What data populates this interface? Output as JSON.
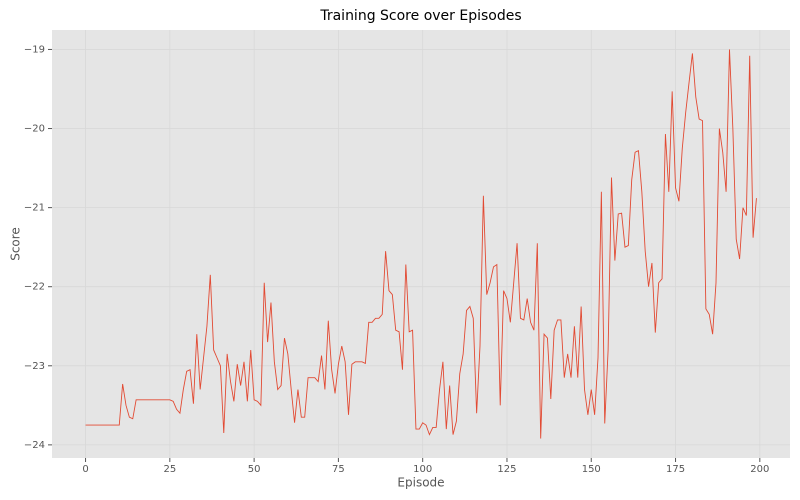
{
  "chart_data": {
    "type": "line",
    "title": "Training Score over Episodes",
    "x_label": "Episode",
    "y_label": "Score",
    "color": "#e24a33",
    "grid": true,
    "xlim": [
      -9.95,
      208.95
    ],
    "ylim": [
      -24.166,
      -18.754
    ],
    "xticks": [
      0,
      25,
      50,
      75,
      100,
      125,
      150,
      175,
      200
    ],
    "yticks": [
      {
        "value": -24,
        "label": "−24"
      },
      {
        "value": -23,
        "label": "−23"
      },
      {
        "value": -22,
        "label": "−22"
      },
      {
        "value": -21,
        "label": "−21"
      },
      {
        "value": -20,
        "label": "−20"
      },
      {
        "value": -19,
        "label": "−19"
      }
    ],
    "x": [
      0,
      1,
      2,
      3,
      4,
      5,
      6,
      7,
      8,
      9,
      10,
      11,
      12,
      13,
      14,
      15,
      16,
      17,
      18,
      19,
      20,
      21,
      22,
      23,
      24,
      25,
      26,
      27,
      28,
      29,
      30,
      31,
      32,
      33,
      34,
      35,
      36,
      37,
      38,
      39,
      40,
      41,
      42,
      43,
      44,
      45,
      46,
      47,
      48,
      49,
      50,
      51,
      52,
      53,
      54,
      55,
      56,
      57,
      58,
      59,
      60,
      61,
      62,
      63,
      64,
      65,
      66,
      67,
      68,
      69,
      70,
      71,
      72,
      73,
      74,
      75,
      76,
      77,
      78,
      79,
      80,
      81,
      82,
      83,
      84,
      85,
      86,
      87,
      88,
      89,
      90,
      91,
      92,
      93,
      94,
      95,
      96,
      97,
      98,
      99,
      100,
      101,
      102,
      103,
      104,
      105,
      106,
      107,
      108,
      109,
      110,
      111,
      112,
      113,
      114,
      115,
      116,
      117,
      118,
      119,
      120,
      121,
      122,
      123,
      124,
      125,
      126,
      127,
      128,
      129,
      130,
      131,
      132,
      133,
      134,
      135,
      136,
      137,
      138,
      139,
      140,
      141,
      142,
      143,
      144,
      145,
      146,
      147,
      148,
      149,
      150,
      151,
      152,
      153,
      154,
      155,
      156,
      157,
      158,
      159,
      160,
      161,
      162,
      163,
      164,
      165,
      166,
      167,
      168,
      169,
      170,
      171,
      172,
      173,
      174,
      175,
      176,
      177,
      178,
      179,
      180,
      181,
      182,
      183,
      184,
      185,
      186,
      187,
      188,
      189,
      190,
      191,
      192,
      193,
      194,
      195,
      196,
      197,
      198,
      199
    ],
    "values": [
      -23.75,
      -23.75,
      -23.75,
      -23.75,
      -23.75,
      -23.75,
      -23.75,
      -23.75,
      -23.75,
      -23.75,
      -23.75,
      -23.23,
      -23.5,
      -23.65,
      -23.67,
      -23.43,
      -23.43,
      -23.43,
      -23.43,
      -23.43,
      -23.43,
      -23.43,
      -23.43,
      -23.43,
      -23.43,
      -23.43,
      -23.45,
      -23.55,
      -23.6,
      -23.3,
      -23.07,
      -23.05,
      -23.48,
      -22.6,
      -23.3,
      -22.9,
      -22.5,
      -21.85,
      -22.8,
      -22.9,
      -23.0,
      -23.85,
      -22.85,
      -23.2,
      -23.45,
      -22.98,
      -23.25,
      -22.95,
      -23.45,
      -22.8,
      -23.43,
      -23.45,
      -23.5,
      -21.95,
      -22.7,
      -22.2,
      -22.95,
      -23.3,
      -23.25,
      -22.65,
      -22.85,
      -23.3,
      -23.72,
      -23.3,
      -23.65,
      -23.65,
      -23.15,
      -23.15,
      -23.15,
      -23.2,
      -22.87,
      -23.3,
      -22.43,
      -23.05,
      -23.35,
      -22.98,
      -22.75,
      -22.95,
      -23.62,
      -22.98,
      -22.95,
      -22.95,
      -22.95,
      -22.97,
      -22.45,
      -22.45,
      -22.4,
      -22.4,
      -22.35,
      -21.55,
      -22.05,
      -22.1,
      -22.55,
      -22.57,
      -23.05,
      -21.72,
      -22.57,
      -22.55,
      -23.8,
      -23.8,
      -23.72,
      -23.75,
      -23.87,
      -23.78,
      -23.78,
      -23.3,
      -22.95,
      -23.8,
      -23.25,
      -23.87,
      -23.7,
      -23.1,
      -22.85,
      -22.3,
      -22.25,
      -22.4,
      -23.6,
      -22.75,
      -20.85,
      -22.1,
      -21.95,
      -21.75,
      -21.72,
      -23.5,
      -22.05,
      -22.15,
      -22.45,
      -21.95,
      -21.45,
      -22.4,
      -22.42,
      -22.15,
      -22.45,
      -22.55,
      -21.45,
      -23.92,
      -22.6,
      -22.65,
      -23.42,
      -22.55,
      -22.42,
      -22.42,
      -23.15,
      -22.85,
      -23.15,
      -22.5,
      -23.15,
      -22.25,
      -23.3,
      -23.62,
      -23.3,
      -23.62,
      -22.9,
      -20.8,
      -23.73,
      -22.8,
      -20.62,
      -21.67,
      -21.08,
      -21.07,
      -21.5,
      -21.48,
      -20.65,
      -20.3,
      -20.28,
      -20.8,
      -21.55,
      -22.0,
      -21.7,
      -22.58,
      -21.95,
      -21.9,
      -20.07,
      -20.8,
      -19.53,
      -20.75,
      -20.92,
      -20.25,
      -19.8,
      -19.42,
      -19.05,
      -19.6,
      -19.88,
      -19.9,
      -22.28,
      -22.35,
      -22.6,
      -21.95,
      -20.0,
      -20.3,
      -20.8,
      -19.0,
      -20.0,
      -21.4,
      -21.65,
      -21.0,
      -21.1,
      -19.08,
      -21.38,
      -20.88
    ]
  }
}
